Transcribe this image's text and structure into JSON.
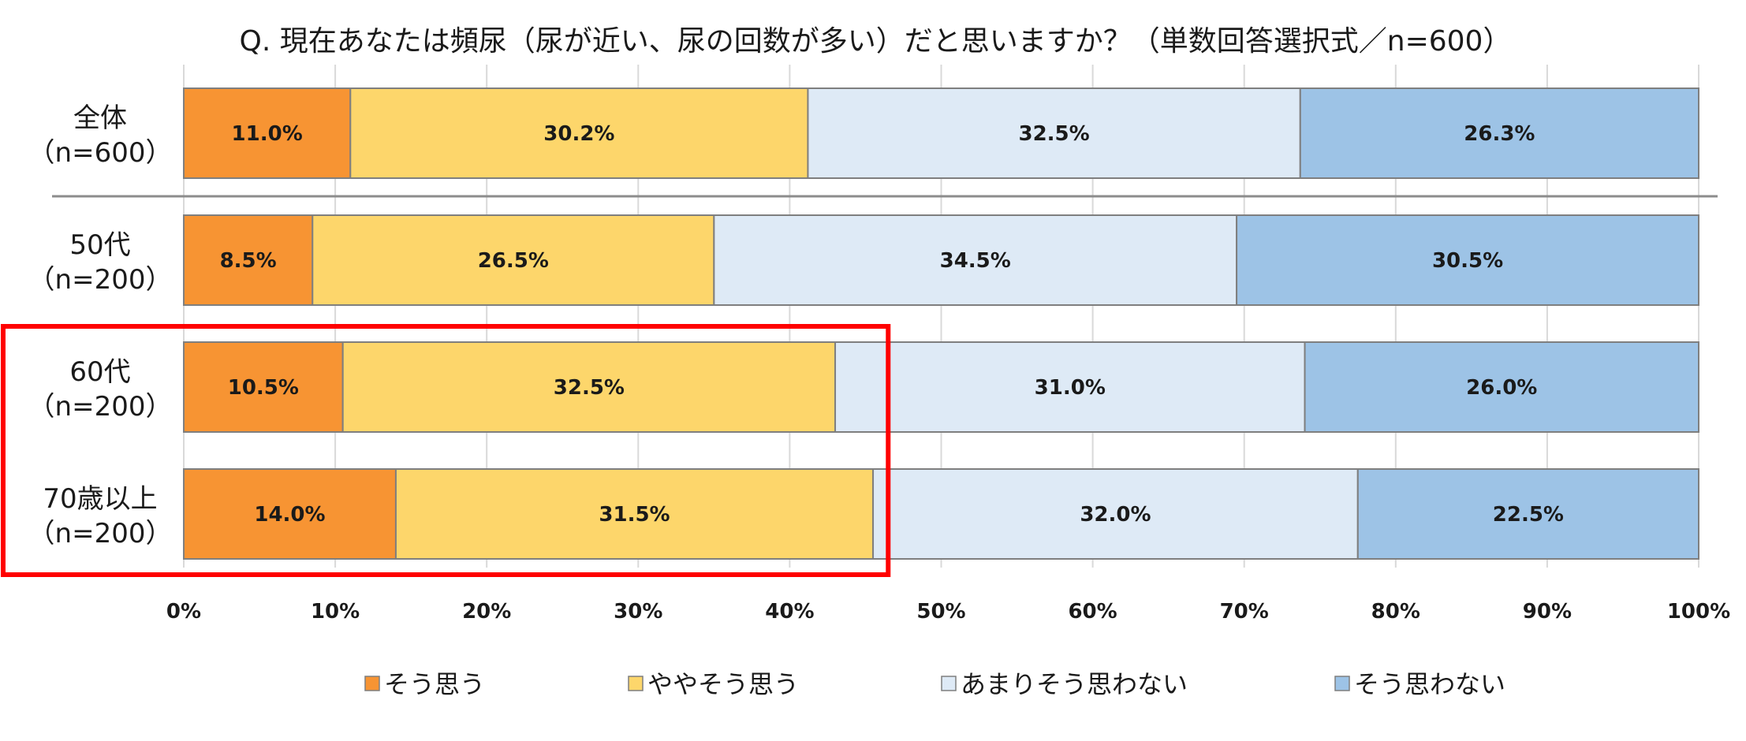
{
  "chart_data": {
    "type": "bar",
    "orientation": "horizontal",
    "stacked": "percent",
    "title": "Q. 現在あなたは頻尿（尿が近い、尿の回数が多い）だと思いますか？（単数回答選択式／n=600）",
    "categories": [
      {
        "line1": "全体",
        "line2": "（n=600）"
      },
      {
        "line1": "50代",
        "line2": "（n=200）"
      },
      {
        "line1": "60代",
        "line2": "（n=200）"
      },
      {
        "line1": "70歳以上",
        "line2": "（n=200）"
      }
    ],
    "series": [
      {
        "name": "そう思う",
        "color": "#F79433",
        "values": [
          11.0,
          8.5,
          10.5,
          14.0
        ]
      },
      {
        "name": "ややそう思う",
        "color": "#FDD66B",
        "values": [
          30.2,
          26.5,
          32.5,
          31.5
        ]
      },
      {
        "name": "あまりそう思わない",
        "color": "#DEEAF6",
        "values": [
          32.5,
          34.5,
          31.0,
          32.0
        ]
      },
      {
        "name": "そう思わない",
        "color": "#9DC3E6",
        "values": [
          26.3,
          30.5,
          26.0,
          22.5
        ]
      }
    ],
    "xlim": [
      0,
      100
    ],
    "xticks": [
      "0%",
      "10%",
      "20%",
      "30%",
      "40%",
      "50%",
      "60%",
      "70%",
      "80%",
      "90%",
      "100%"
    ],
    "value_suffix": "%",
    "grid": true,
    "legend_position": "bottom",
    "highlight": {
      "color": "#FF0000",
      "categories": [
        "60代",
        "70歳以上"
      ],
      "x_to": 46.5
    }
  }
}
